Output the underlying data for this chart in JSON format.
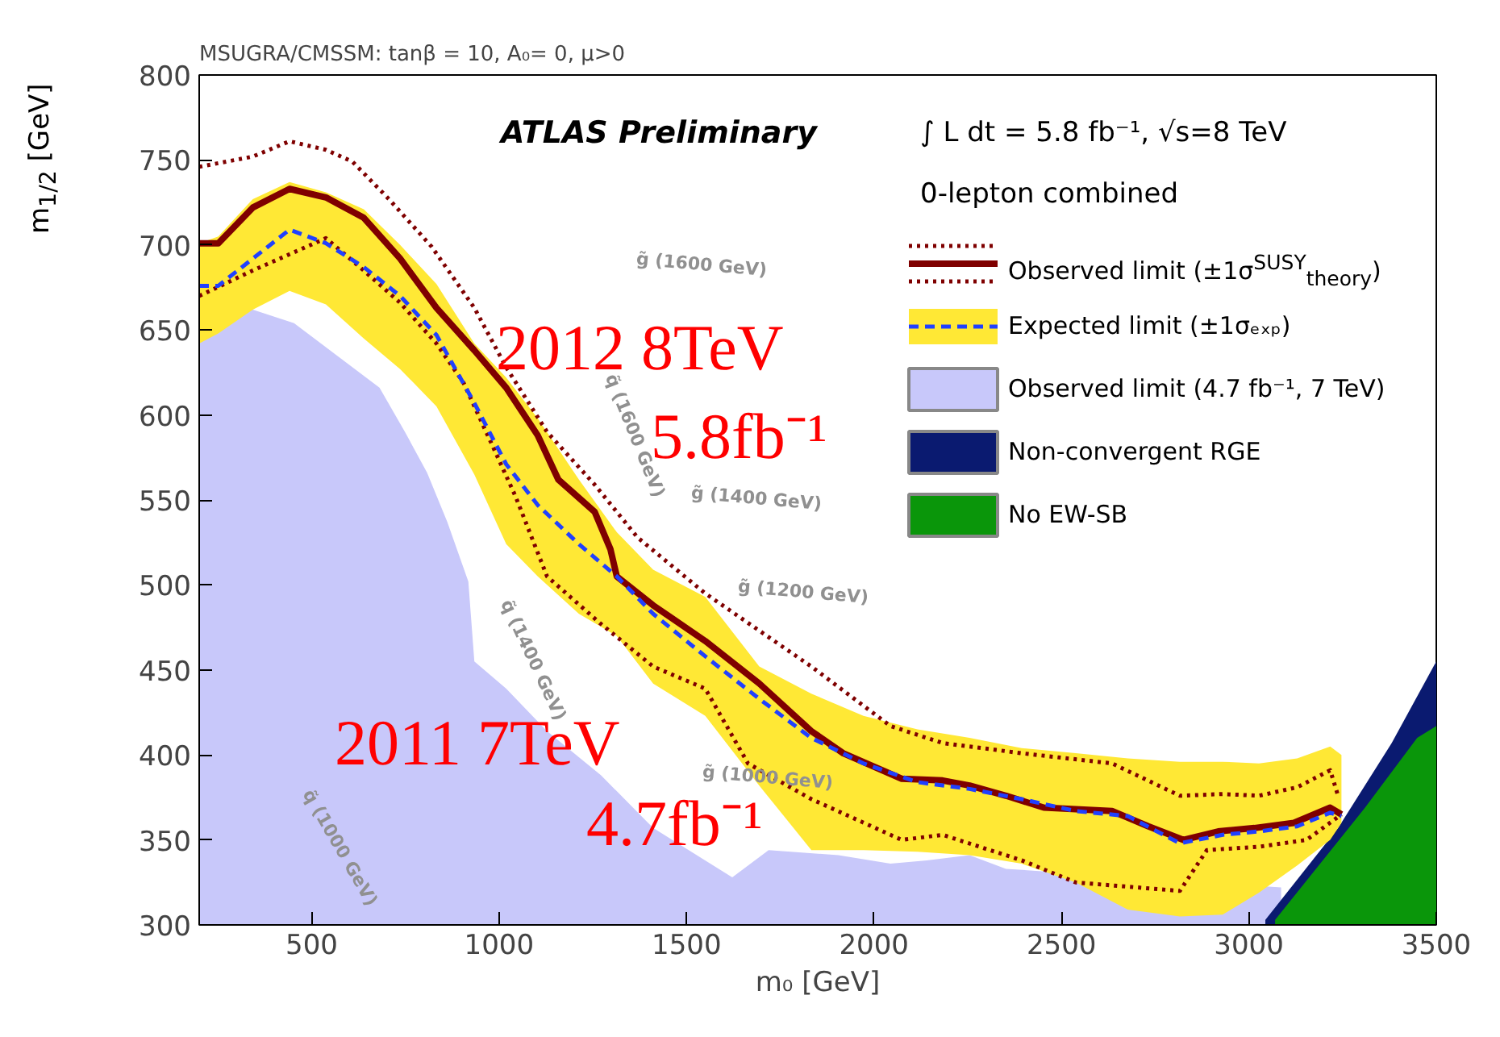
{
  "chart_data": {
    "type": "line",
    "title": "MSUGRA/CMSSM: tanβ = 10, A₀= 0, μ>0",
    "xlabel": "m₀ [GeV]",
    "ylabel": "m$_{1/2}$ [GeV]",
    "xlim": [
      200,
      3500
    ],
    "ylim": [
      300,
      800
    ],
    "xticks": [
      500,
      1000,
      1500,
      2000,
      2500,
      3000,
      3500
    ],
    "yticks": [
      300,
      350,
      400,
      450,
      500,
      550,
      600,
      650,
      700,
      750,
      800
    ],
    "grid": false,
    "legend": "top right",
    "annotations": [
      "ATLAS Preliminary",
      "∫ L dt = 5.8 fb⁻¹, √s=8 TeV",
      "0-lepton combined",
      "2012 8TeV",
      "5.8fb⁻¹",
      "2011 7TeV",
      "4.7fb⁻¹",
      "g̃ (1600 GeV)",
      "q̃ (1600 GeV)",
      "g̃ (1400 GeV)",
      "g̃ (1200 GeV)",
      "q̃ (1400 GeV)",
      "g̃ (1000 GeV)",
      "q̃ (1000 GeV)"
    ],
    "series": [
      {
        "line_style": "dotted",
        "color": "#7f0000",
        "x": [
          200,
          343,
          441,
          538,
          609,
          706,
          820,
          934,
          1019,
          1128,
          1255,
          1369,
          1550,
          1833,
          2044,
          2183,
          2394,
          2635,
          2816,
          2930,
          3027,
          3129,
          3217,
          3238
        ],
        "values": [
          746,
          752,
          761,
          756,
          749,
          727,
          699,
          663,
          628,
          590,
          559,
          528,
          495,
          452,
          417,
          407,
          401,
          395,
          376,
          377,
          376,
          381,
          391,
          376
        ]
      },
      {
        "line_style": "dotted",
        "color": "#7f0000",
        "x": [
          200,
          343,
          538,
          639,
          736,
          833,
          905,
          976,
          1044,
          1128,
          1272,
          1411,
          1550,
          1664,
          1833,
          2074,
          2183,
          2394,
          2538,
          2816,
          2888,
          3027,
          3154,
          3247
        ],
        "values": [
          670,
          685,
          704,
          685,
          666,
          642,
          619,
          585,
          552,
          505,
          477,
          452,
          439,
          395,
          374,
          350,
          353,
          338,
          325,
          320,
          344,
          346,
          350,
          365
        ]
      },
      {
        "name": "Observed limit (±1σ$^{SUSY}$$_{theory}$)",
        "line_style": "solid",
        "color": "#7f0000",
        "x": [
          200,
          251,
          343,
          441,
          538,
          639,
          736,
          833,
          934,
          1019,
          1103,
          1158,
          1255,
          1297,
          1314,
          1411,
          1550,
          1694,
          1833,
          1918,
          2074,
          2183,
          2255,
          2352,
          2453,
          2635,
          2732,
          2825,
          2918,
          3015,
          3120,
          3217,
          3247
        ],
        "values": [
          701,
          701,
          722,
          733,
          728,
          716,
          692,
          663,
          638,
          616,
          588,
          562,
          543,
          521,
          505,
          488,
          467,
          442,
          414,
          401,
          386,
          385,
          382,
          376,
          369,
          367,
          358,
          350,
          355,
          357,
          360,
          369,
          365
        ]
      },
      {
        "name": "Expected limit (±1σₑₓₚ)",
        "line_style": "dashed",
        "color": "#2040ff",
        "x": [
          200,
          251,
          343,
          441,
          538,
          639,
          736,
          833,
          934,
          1019,
          1103,
          1213,
          1314,
          1411,
          1550,
          1694,
          1833,
          1972,
          2116,
          2255,
          2394,
          2538,
          2677,
          2816,
          2930,
          3027,
          3129,
          3217,
          3247
        ],
        "values": [
          676,
          676,
          692,
          709,
          701,
          687,
          670,
          647,
          607,
          571,
          547,
          524,
          505,
          483,
          458,
          433,
          410,
          395,
          384,
          380,
          374,
          367,
          364,
          348,
          353,
          355,
          358,
          366,
          364
        ],
        "upper": [
          701,
          705,
          727,
          737,
          731,
          721,
          700,
          677,
          642,
          622,
          598,
          562,
          531,
          509,
          493,
          452,
          436,
          423,
          415,
          410,
          404,
          401,
          398,
          396,
          396,
          395,
          398,
          405,
          400
        ],
        "lower": [
          642,
          648,
          662,
          673,
          665,
          645,
          627,
          605,
          565,
          524,
          505,
          483,
          470,
          442,
          423,
          382,
          344,
          344,
          343,
          341,
          336,
          325,
          309,
          305,
          306,
          319,
          335,
          350,
          360
        ]
      },
      {
        "type": "area",
        "name": "Observed limit (4.7 fb⁻¹, 7 TeV)",
        "color": "#c8c8fa",
        "x": [
          200,
          343,
          453,
          567,
          681,
          749,
          808,
          862,
          918,
          934,
          1019,
          1128,
          1272,
          1411,
          1622,
          1719,
          1905,
          2044,
          2141,
          2255,
          2352,
          3086
        ],
        "values": [
          659,
          662,
          654,
          635,
          616,
          590,
          566,
          537,
          502,
          455,
          439,
          414,
          388,
          357,
          328,
          344,
          341,
          336,
          338,
          341,
          333,
          322
        ]
      },
      {
        "type": "area",
        "name": "Non-convergent RGE",
        "color": "#0a1a70",
        "x": [
          3044,
          3238,
          3381,
          3500
        ],
        "values": [
          303,
          357,
          407,
          455
        ]
      },
      {
        "type": "area",
        "name": "No EW-SB",
        "color": "#0a960a",
        "x": [
          3070,
          3310,
          3449,
          3500
        ],
        "values": [
          303,
          369,
          410,
          417
        ]
      }
    ]
  }
}
